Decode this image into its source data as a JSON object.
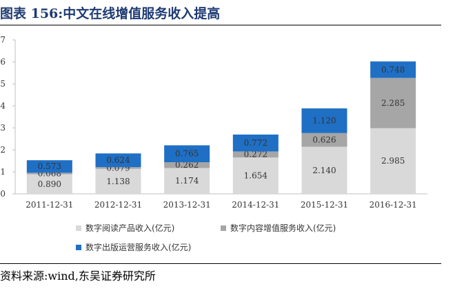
{
  "header": {
    "title": "图表 156:中文在线增值服务收入提高"
  },
  "footer": {
    "source": "资料来源:wind,东吴证券研究所"
  },
  "colors": {
    "series1": "#d9d9d9",
    "series2": "#a6a6a6",
    "series3": "#1f6fc5"
  },
  "chart_data": {
    "type": "bar",
    "stacked": true,
    "categories": [
      "2011-12-31",
      "2012-12-31",
      "2013-12-31",
      "2014-12-31",
      "2015-12-31",
      "2016-12-31"
    ],
    "series": [
      {
        "name": "数字阅读产品收入(亿元)",
        "values": [
          0.89,
          1.138,
          1.174,
          1.654,
          2.14,
          2.985
        ],
        "labels": [
          "0.890",
          "1.138",
          "1.174",
          "1.654",
          "2.140",
          "2.985"
        ]
      },
      {
        "name": "数字内容增值服务收入(亿元)",
        "values": [
          0.068,
          0.079,
          0.262,
          0.272,
          0.626,
          2.285
        ],
        "labels": [
          "0.068",
          "0.079",
          "0.262",
          "0.272",
          "0.626",
          "2.285"
        ]
      },
      {
        "name": "数字出版运营服务收入(亿元)",
        "values": [
          0.57,
          0.62,
          0.77,
          0.77,
          1.12,
          0.75
        ],
        "labels": [
          "0.573",
          "0.624",
          "0.765",
          "0.772",
          "1.120",
          "0.748"
        ]
      }
    ],
    "y_ticks": [
      "0",
      "1",
      "2",
      "3",
      "4",
      "5",
      "6",
      "7"
    ],
    "ylim": [
      0,
      7
    ],
    "grid": false,
    "legend_position": "bottom"
  }
}
